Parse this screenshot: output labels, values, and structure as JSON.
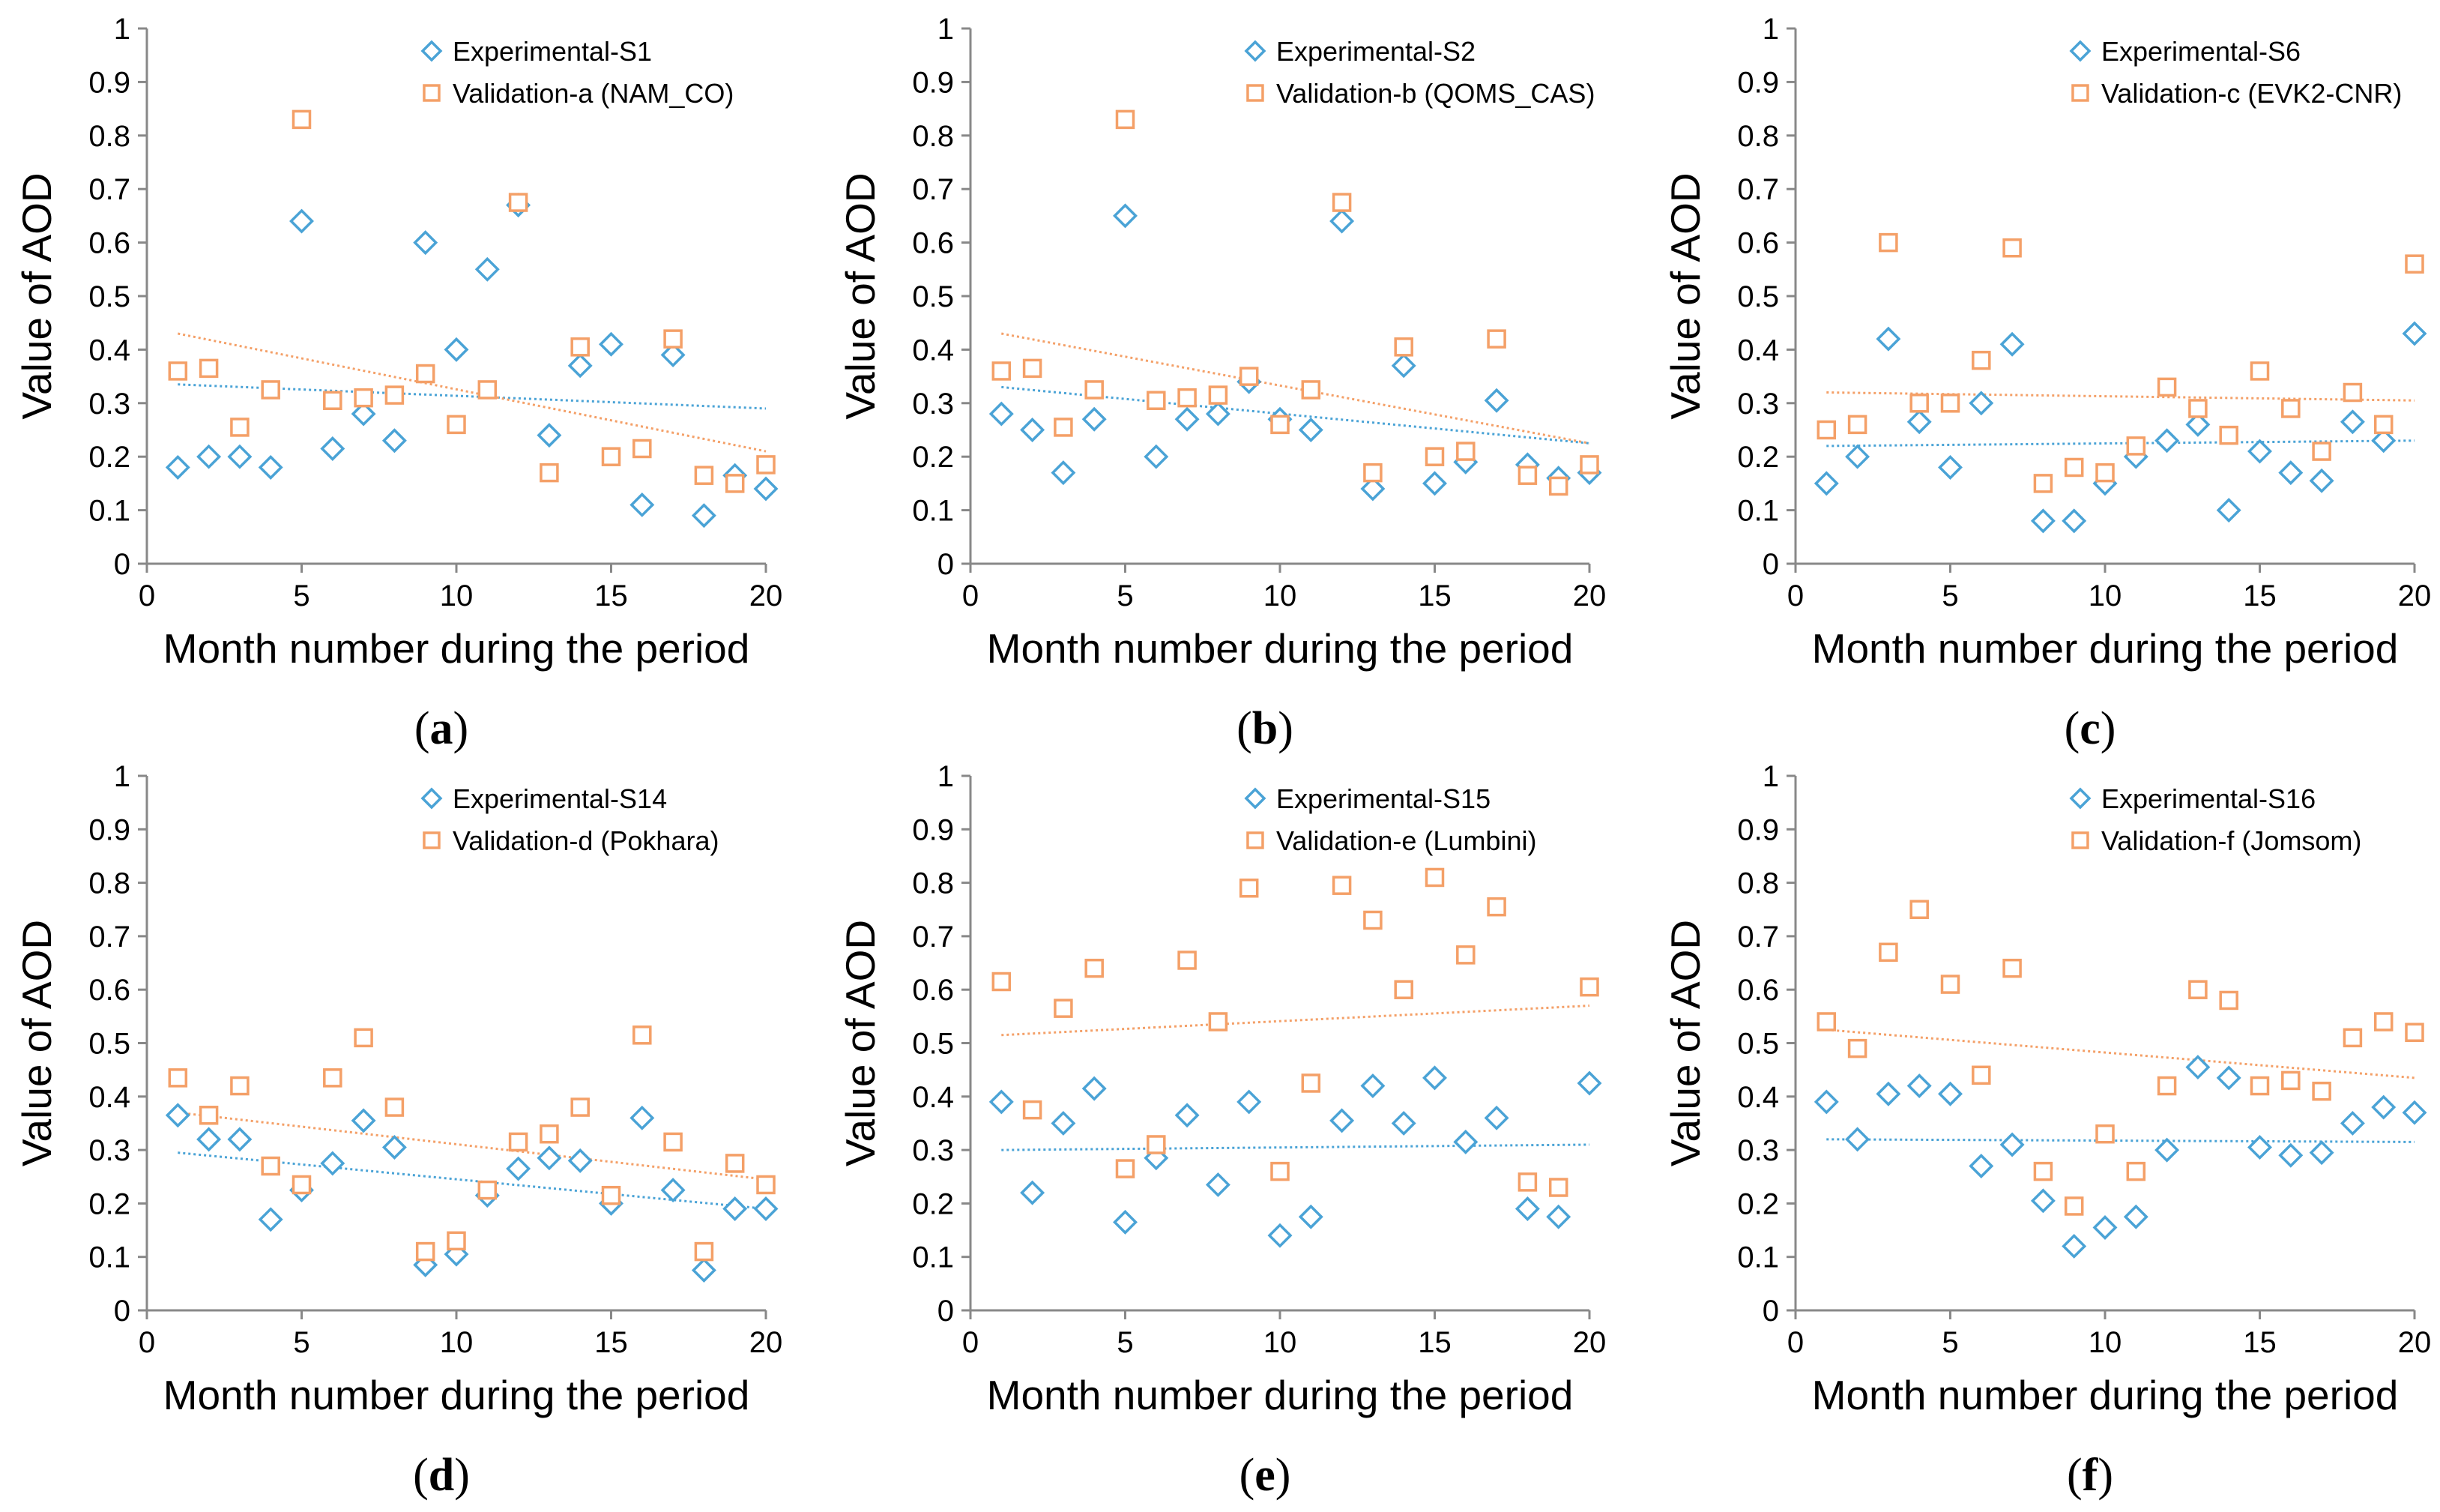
{
  "figure": {
    "colors": {
      "experimental": "#4aa3d6",
      "validation": "#f4a068",
      "axis": "#888888"
    },
    "charts_layout": "2 rows x 3 columns"
  },
  "chart_data": [
    {
      "type": "scatter",
      "panel_label": "a",
      "xlabel": "Month number during the period",
      "ylabel": "Value of AOD",
      "xlim": [
        0,
        20
      ],
      "ylim": [
        0,
        1
      ],
      "xticks": [
        "0",
        "5",
        "10",
        "15",
        "20"
      ],
      "yticks": [
        "0",
        "0.1",
        "0.2",
        "0.3",
        "0.4",
        "0.5",
        "0.6",
        "0.7",
        "0.8",
        "0.9",
        "1"
      ],
      "grid": false,
      "legend_position": "top-right",
      "series": [
        {
          "name": "Experimental-S1",
          "marker": "diamond",
          "color": "#4aa3d6",
          "x": [
            1,
            2,
            3,
            4,
            5,
            6,
            7,
            8,
            9,
            10,
            11,
            12,
            13,
            14,
            15,
            16,
            17,
            18,
            19,
            20
          ],
          "y": [
            0.18,
            0.2,
            0.2,
            0.18,
            0.64,
            0.215,
            0.28,
            0.23,
            0.6,
            0.4,
            0.55,
            0.67,
            0.24,
            0.37,
            0.41,
            0.11,
            0.39,
            0.09,
            0.165,
            0.14
          ],
          "trendline": [
            0.335,
            0.29
          ]
        },
        {
          "name": "Validation-a (NAM_CO)",
          "marker": "square",
          "color": "#f4a068",
          "x": [
            1,
            2,
            3,
            4,
            5,
            6,
            7,
            8,
            9,
            10,
            11,
            12,
            13,
            14,
            15,
            16,
            17,
            18,
            19,
            20
          ],
          "y": [
            0.36,
            0.365,
            0.255,
            0.325,
            0.83,
            0.305,
            0.31,
            0.315,
            0.355,
            0.26,
            0.325,
            0.675,
            0.17,
            0.405,
            0.2,
            0.215,
            0.42,
            0.165,
            0.15,
            0.185
          ],
          "trendline": [
            0.43,
            0.21
          ]
        }
      ]
    },
    {
      "type": "scatter",
      "panel_label": "b",
      "xlabel": "Month number during the period",
      "ylabel": "Value of AOD",
      "xlim": [
        0,
        20
      ],
      "ylim": [
        0,
        1
      ],
      "xticks": [
        "0",
        "5",
        "10",
        "15",
        "20"
      ],
      "yticks": [
        "0",
        "0.1",
        "0.2",
        "0.3",
        "0.4",
        "0.5",
        "0.6",
        "0.7",
        "0.8",
        "0.9",
        "1"
      ],
      "grid": false,
      "legend_position": "top-right",
      "series": [
        {
          "name": "Experimental-S2",
          "marker": "diamond",
          "color": "#4aa3d6",
          "x": [
            1,
            2,
            3,
            4,
            5,
            6,
            7,
            8,
            9,
            10,
            11,
            12,
            13,
            14,
            15,
            16,
            17,
            18,
            19,
            20
          ],
          "y": [
            0.28,
            0.25,
            0.17,
            0.27,
            0.65,
            0.2,
            0.27,
            0.28,
            0.34,
            0.27,
            0.25,
            0.64,
            0.14,
            0.37,
            0.15,
            0.19,
            0.305,
            0.185,
            0.16,
            0.17
          ],
          "trendline": [
            0.33,
            0.225
          ]
        },
        {
          "name": "Validation-b (QOMS_CAS)",
          "marker": "square",
          "color": "#f4a068",
          "x": [
            1,
            2,
            3,
            4,
            5,
            6,
            7,
            8,
            9,
            10,
            11,
            12,
            13,
            14,
            15,
            16,
            17,
            18,
            19,
            20
          ],
          "y": [
            0.36,
            0.365,
            0.255,
            0.325,
            0.83,
            0.305,
            0.31,
            0.315,
            0.35,
            0.26,
            0.325,
            0.675,
            0.17,
            0.405,
            0.2,
            0.21,
            0.42,
            0.165,
            0.145,
            0.185
          ],
          "trendline": [
            0.43,
            0.225
          ]
        }
      ]
    },
    {
      "type": "scatter",
      "panel_label": "c",
      "xlabel": "Month number during the period",
      "ylabel": "Value of AOD",
      "xlim": [
        0,
        20
      ],
      "ylim": [
        0,
        1
      ],
      "xticks": [
        "0",
        "5",
        "10",
        "15",
        "20"
      ],
      "yticks": [
        "0",
        "0.1",
        "0.2",
        "0.3",
        "0.4",
        "0.5",
        "0.6",
        "0.7",
        "0.8",
        "0.9",
        "1"
      ],
      "grid": false,
      "legend_position": "top-right",
      "series": [
        {
          "name": "Experimental-S6",
          "marker": "diamond",
          "color": "#4aa3d6",
          "x": [
            1,
            2,
            3,
            4,
            5,
            6,
            7,
            8,
            9,
            10,
            11,
            12,
            13,
            14,
            15,
            16,
            17,
            18,
            19,
            20
          ],
          "y": [
            0.15,
            0.2,
            0.42,
            0.265,
            0.18,
            0.3,
            0.41,
            0.08,
            0.08,
            0.15,
            0.2,
            0.23,
            0.26,
            0.1,
            0.21,
            0.17,
            0.155,
            0.265,
            0.23,
            0.43
          ],
          "trendline": [
            0.22,
            0.23
          ]
        },
        {
          "name": "Validation-c (EVK2-CNR)",
          "marker": "square",
          "color": "#f4a068",
          "x": [
            1,
            2,
            3,
            4,
            5,
            6,
            7,
            8,
            9,
            10,
            11,
            12,
            13,
            14,
            15,
            16,
            17,
            18,
            19,
            20
          ],
          "y": [
            0.25,
            0.26,
            0.6,
            0.3,
            0.3,
            0.38,
            0.59,
            0.15,
            0.18,
            0.17,
            0.22,
            0.33,
            0.29,
            0.24,
            0.36,
            0.29,
            0.21,
            0.32,
            0.26,
            0.56
          ],
          "trendline": [
            0.32,
            0.305
          ]
        }
      ]
    },
    {
      "type": "scatter",
      "panel_label": "d",
      "xlabel": "Month number during the period",
      "ylabel": "Value of AOD",
      "xlim": [
        0,
        20
      ],
      "ylim": [
        0,
        1
      ],
      "xticks": [
        "0",
        "5",
        "10",
        "15",
        "20"
      ],
      "yticks": [
        "0",
        "0.1",
        "0.2",
        "0.3",
        "0.4",
        "0.5",
        "0.6",
        "0.7",
        "0.8",
        "0.9",
        "1"
      ],
      "grid": false,
      "legend_position": "top-right",
      "series": [
        {
          "name": "Experimental-S14",
          "marker": "diamond",
          "color": "#4aa3d6",
          "x": [
            1,
            2,
            3,
            4,
            5,
            6,
            7,
            8,
            9,
            10,
            11,
            12,
            13,
            14,
            15,
            16,
            17,
            18,
            19,
            20
          ],
          "y": [
            0.365,
            0.32,
            0.32,
            0.17,
            0.225,
            0.275,
            0.355,
            0.305,
            0.085,
            0.105,
            0.215,
            0.265,
            0.285,
            0.28,
            0.2,
            0.36,
            0.225,
            0.075,
            0.19,
            0.19
          ],
          "trendline": [
            0.295,
            0.19
          ]
        },
        {
          "name": "Validation-d (Pokhara)",
          "marker": "square",
          "color": "#f4a068",
          "x": [
            1,
            2,
            3,
            4,
            5,
            6,
            7,
            8,
            9,
            10,
            11,
            12,
            13,
            14,
            15,
            16,
            17,
            18,
            19,
            20
          ],
          "y": [
            0.435,
            0.365,
            0.42,
            0.27,
            0.235,
            0.435,
            0.51,
            0.38,
            0.11,
            0.13,
            0.225,
            0.315,
            0.33,
            0.38,
            0.215,
            0.515,
            0.315,
            0.11,
            0.275,
            0.235
          ],
          "trendline": [
            0.37,
            0.245
          ]
        }
      ]
    },
    {
      "type": "scatter",
      "panel_label": "e",
      "xlabel": "Month number during the period",
      "ylabel": "Value of AOD",
      "xlim": [
        0,
        20
      ],
      "ylim": [
        0,
        1
      ],
      "xticks": [
        "0",
        "5",
        "10",
        "15",
        "20"
      ],
      "yticks": [
        "0",
        "0.1",
        "0.2",
        "0.3",
        "0.4",
        "0.5",
        "0.6",
        "0.7",
        "0.8",
        "0.9",
        "1"
      ],
      "grid": false,
      "legend_position": "top-right",
      "series": [
        {
          "name": "Experimental-S15",
          "marker": "diamond",
          "color": "#4aa3d6",
          "x": [
            1,
            2,
            3,
            4,
            5,
            6,
            7,
            8,
            9,
            10,
            11,
            12,
            13,
            14,
            15,
            16,
            17,
            18,
            19,
            20
          ],
          "y": [
            0.39,
            0.22,
            0.35,
            0.415,
            0.165,
            0.285,
            0.365,
            0.235,
            0.39,
            0.14,
            0.175,
            0.355,
            0.42,
            0.35,
            0.435,
            0.315,
            0.36,
            0.19,
            0.175,
            0.425
          ],
          "trendline": [
            0.3,
            0.31
          ]
        },
        {
          "name": "Validation-e (Lumbini)",
          "marker": "square",
          "color": "#f4a068",
          "x": [
            1,
            2,
            3,
            4,
            5,
            6,
            7,
            8,
            9,
            10,
            11,
            12,
            13,
            14,
            15,
            16,
            17,
            18,
            19,
            20
          ],
          "y": [
            0.615,
            0.375,
            0.565,
            0.64,
            0.265,
            0.31,
            0.655,
            0.54,
            0.79,
            0.26,
            0.425,
            0.795,
            0.73,
            0.6,
            0.81,
            0.665,
            0.755,
            0.24,
            0.23,
            0.605
          ],
          "trendline": [
            0.515,
            0.57
          ]
        }
      ]
    },
    {
      "type": "scatter",
      "panel_label": "f",
      "xlabel": "Month number during the period",
      "ylabel": "Value of AOD",
      "xlim": [
        0,
        20
      ],
      "ylim": [
        0,
        1
      ],
      "xticks": [
        "0",
        "5",
        "10",
        "15",
        "20"
      ],
      "yticks": [
        "0",
        "0.1",
        "0.2",
        "0.3",
        "0.4",
        "0.5",
        "0.6",
        "0.7",
        "0.8",
        "0.9",
        "1"
      ],
      "grid": false,
      "legend_position": "top-right",
      "series": [
        {
          "name": "Experimental-S16",
          "marker": "diamond",
          "color": "#4aa3d6",
          "x": [
            1,
            2,
            3,
            4,
            5,
            6,
            7,
            8,
            9,
            10,
            11,
            12,
            13,
            14,
            15,
            16,
            17,
            18,
            19,
            20
          ],
          "y": [
            0.39,
            0.32,
            0.405,
            0.42,
            0.405,
            0.27,
            0.31,
            0.205,
            0.12,
            0.155,
            0.175,
            0.3,
            0.455,
            0.435,
            0.305,
            0.29,
            0.295,
            0.35,
            0.38,
            0.37
          ],
          "trendline": [
            0.32,
            0.315
          ]
        },
        {
          "name": "Validation-f (Jomsom)",
          "marker": "square",
          "color": "#f4a068",
          "x": [
            1,
            2,
            3,
            4,
            5,
            6,
            7,
            8,
            9,
            10,
            11,
            12,
            13,
            14,
            15,
            16,
            17,
            18,
            19,
            20
          ],
          "y": [
            0.54,
            0.49,
            0.67,
            0.75,
            0.61,
            0.44,
            0.64,
            0.26,
            0.195,
            0.33,
            0.26,
            0.42,
            0.6,
            0.58,
            0.42,
            0.43,
            0.41,
            0.51,
            0.54,
            0.52
          ],
          "trendline": [
            0.525,
            0.435
          ]
        }
      ]
    }
  ]
}
